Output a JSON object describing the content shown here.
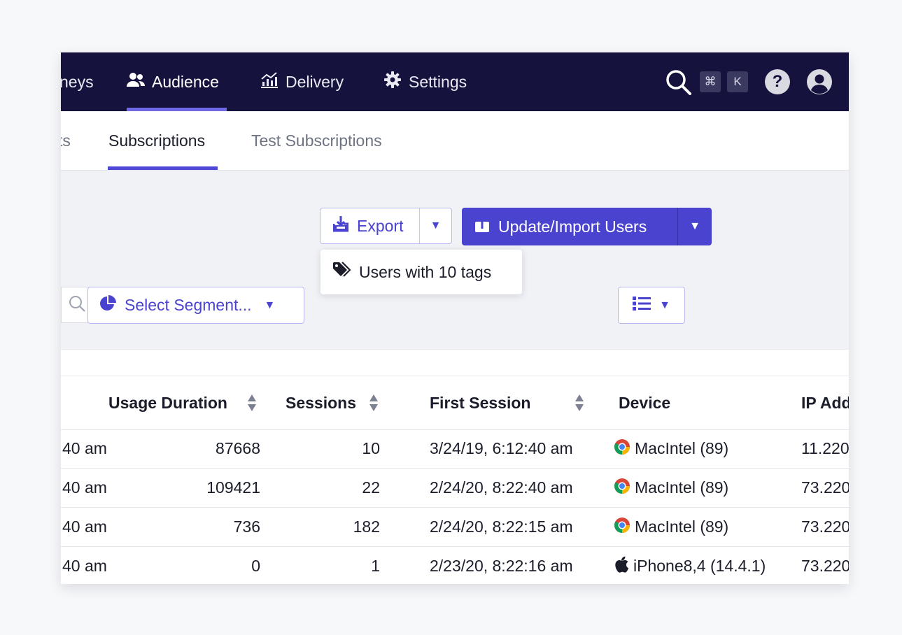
{
  "topnav": {
    "items": [
      {
        "label": "neys",
        "icon": "journeys-icon"
      },
      {
        "label": "Audience",
        "icon": "users-icon",
        "active": true
      },
      {
        "label": "Delivery",
        "icon": "chart-icon"
      },
      {
        "label": "Settings",
        "icon": "gear-icon"
      }
    ],
    "shortcut_keys": [
      "⌘",
      "K"
    ],
    "help_label": "?",
    "accent_color": "#6f69e6",
    "background_color": "#15133d"
  },
  "subtabs": {
    "items": [
      {
        "label": "ts"
      },
      {
        "label": "Subscriptions",
        "active": true
      },
      {
        "label": "Test Subscriptions"
      }
    ]
  },
  "toolbar": {
    "export_label": "Export",
    "import_label": "Update/Import Users",
    "export_menu": [
      {
        "label": "Users with 10 tags",
        "icon": "tag-icon"
      }
    ],
    "segment_placeholder": "Select Segment...",
    "primary_color": "#4a43cf"
  },
  "table": {
    "columns": [
      {
        "label": "Usage Duration",
        "sortable": true
      },
      {
        "label": "Sessions",
        "sortable": true
      },
      {
        "label": "First Session",
        "sortable": true
      },
      {
        "label": "Device",
        "sortable": false
      },
      {
        "label": "IP Add",
        "sortable": false
      }
    ],
    "rows": [
      {
        "last_session": "40 am",
        "usage": "87668",
        "sessions": "10",
        "first_session": "3/24/19, 6:12:40 am",
        "device_icon": "chrome-icon",
        "device": "MacIntel (89)",
        "ip": "11.220"
      },
      {
        "last_session": "40 am",
        "usage": "109421",
        "sessions": "22",
        "first_session": "2/24/20, 8:22:40 am",
        "device_icon": "chrome-icon",
        "device": "MacIntel (89)",
        "ip": "73.220"
      },
      {
        "last_session": "40 am",
        "usage": "736",
        "sessions": "182",
        "first_session": "2/24/20, 8:22:15 am",
        "device_icon": "chrome-icon",
        "device": "MacIntel (89)",
        "ip": "73.220"
      },
      {
        "last_session": "40 am",
        "usage": "0",
        "sessions": "1",
        "first_session": "2/23/20, 8:22:16 am",
        "device_icon": "apple-icon",
        "device": "iPhone8,4 (14.4.1)",
        "ip": "73.220"
      }
    ]
  }
}
